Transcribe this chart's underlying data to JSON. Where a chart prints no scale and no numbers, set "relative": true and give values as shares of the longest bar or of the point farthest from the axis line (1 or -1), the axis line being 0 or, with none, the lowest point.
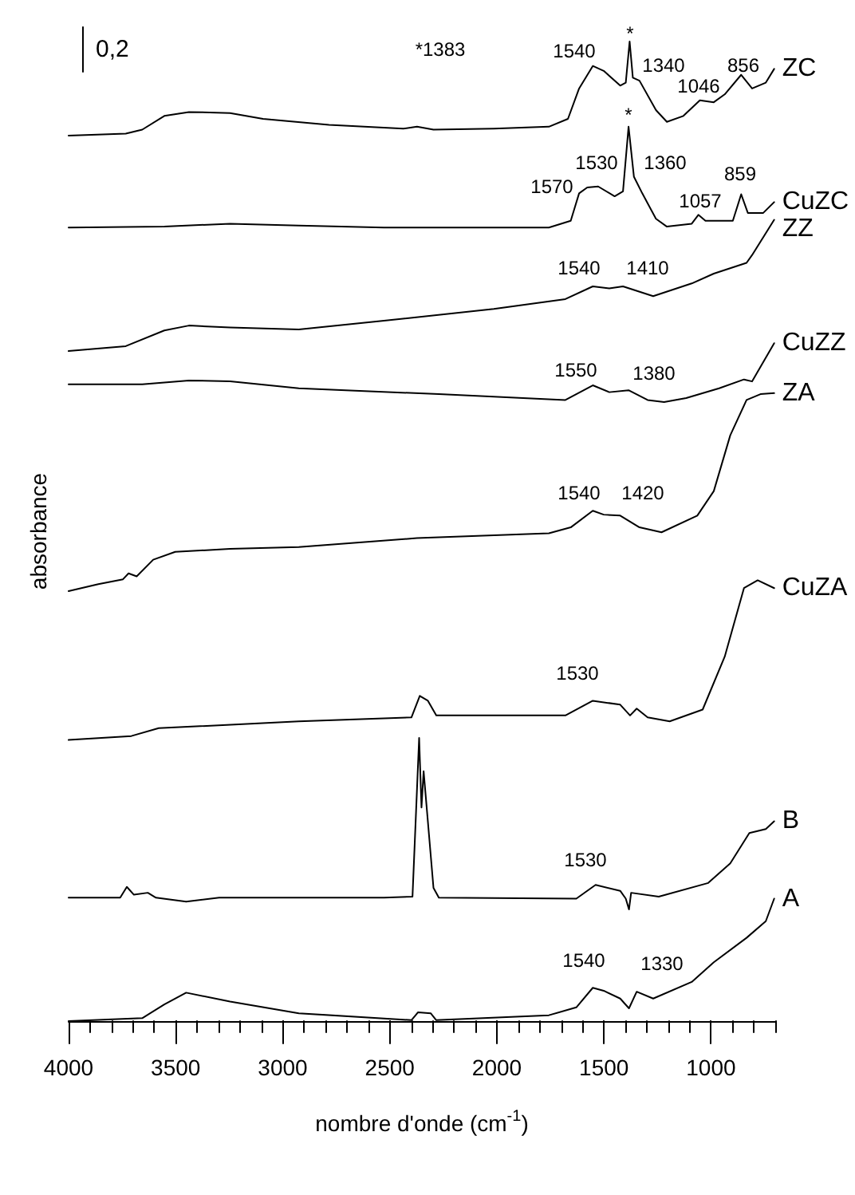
{
  "chart_data": {
    "type": "line",
    "relative": true,
    "xlabel": "nombre d'onde (cm$^{-1}$)",
    "ylabel": "absorbance",
    "xlim": [
      4000,
      700
    ],
    "xticks": [
      4000,
      {
        "value": 3900,
        "label": null
      },
      {
        "value": 3800,
        "label": null
      },
      {
        "value": 3700,
        "label": null
      },
      {
        "value": 3600,
        "label": null
      },
      3500,
      {
        "value": 3400,
        "label": null
      },
      {
        "value": 3300,
        "label": null
      },
      {
        "value": 3200,
        "label": null
      },
      {
        "value": 3100,
        "label": null
      },
      3000,
      {
        "value": 2900,
        "label": null
      },
      {
        "value": 2800,
        "label": null
      },
      {
        "value": 2700,
        "label": null
      },
      {
        "value": 2600,
        "label": null
      },
      2500,
      {
        "value": 2400,
        "label": null
      },
      {
        "value": 2300,
        "label": null
      },
      {
        "value": 2200,
        "label": null
      },
      {
        "value": 2100,
        "label": null
      },
      2000,
      {
        "value": 1900,
        "label": null
      },
      {
        "value": 1800,
        "label": null
      },
      {
        "value": 1700,
        "label": null
      },
      {
        "value": 1600,
        "label": null
      },
      1500,
      {
        "value": 1400,
        "label": null
      },
      {
        "value": 1300,
        "label": null
      },
      {
        "value": 1200,
        "label": null
      },
      {
        "value": 1100,
        "label": null
      },
      1000,
      {
        "value": 900,
        "label": null
      },
      {
        "value": 800,
        "label": null
      },
      {
        "value": 700,
        "label": null
      }
    ],
    "series": [
      {
        "name": "ZC",
        "color": "#000000",
        "x": [
          4000,
          3733,
          3656,
          3553,
          3438,
          3246,
          3092,
          2784,
          2437,
          2373,
          2296,
          2014,
          1757,
          1668,
          1616,
          1552,
          1501,
          1424,
          1398,
          1380,
          1365,
          1334,
          1257,
          1206,
          1129,
          1052,
          987,
          936,
          859,
          808,
          744,
          705
        ],
        "values": [
          0.904,
          0.906,
          0.91,
          0.924,
          0.928,
          0.927,
          0.921,
          0.915,
          0.911,
          0.913,
          0.91,
          0.911,
          0.913,
          0.921,
          0.952,
          0.975,
          0.97,
          0.955,
          0.958,
          1.0,
          0.963,
          0.96,
          0.93,
          0.918,
          0.924,
          0.94,
          0.938,
          0.946,
          0.966,
          0.952,
          0.958,
          0.972
        ]
      },
      {
        "name": "CuZC",
        "color": "#000000",
        "x": [
          4000,
          3553,
          3246,
          2925,
          2527,
          1757,
          1655,
          1616,
          1578,
          1527,
          1450,
          1411,
          1385,
          1360,
          1321,
          1257,
          1206,
          1090,
          1059,
          1026,
          898,
          859,
          828,
          756,
          705
        ],
        "values": [
          0.81,
          0.811,
          0.814,
          0.812,
          0.81,
          0.81,
          0.817,
          0.845,
          0.851,
          0.852,
          0.842,
          0.847,
          0.913,
          0.862,
          0.845,
          0.819,
          0.811,
          0.814,
          0.823,
          0.817,
          0.817,
          0.844,
          0.825,
          0.825,
          0.836
        ]
      },
      {
        "name": "ZZ",
        "color": "#000000",
        "x": [
          4000,
          3733,
          3553,
          3438,
          3246,
          2925,
          2527,
          2014,
          1680,
          1552,
          1475,
          1411,
          1270,
          1090,
          987,
          834,
          808,
          705
        ],
        "values": [
          0.684,
          0.689,
          0.705,
          0.71,
          0.708,
          0.706,
          0.715,
          0.727,
          0.737,
          0.75,
          0.748,
          0.75,
          0.74,
          0.753,
          0.763,
          0.774,
          0.782,
          0.818
        ]
      },
      {
        "name": "CuZZ",
        "color": "#000000",
        "x": [
          4000,
          3656,
          3438,
          3246,
          2925,
          2271,
          1680,
          1552,
          1475,
          1385,
          1296,
          1219,
          1116,
          962,
          846,
          808,
          705
        ],
        "values": [
          0.65,
          0.65,
          0.654,
          0.653,
          0.646,
          0.64,
          0.634,
          0.649,
          0.642,
          0.644,
          0.634,
          0.632,
          0.636,
          0.646,
          0.655,
          0.653,
          0.692
        ]
      },
      {
        "name": "ZA",
        "color": "#000000",
        "x": [
          4000,
          3861,
          3746,
          3720,
          3682,
          3605,
          3502,
          3246,
          2925,
          2373,
          1757,
          1655,
          1552,
          1501,
          1424,
          1334,
          1231,
          1064,
          987,
          910,
          834,
          769,
          705
        ],
        "values": [
          0.439,
          0.446,
          0.451,
          0.457,
          0.454,
          0.471,
          0.479,
          0.482,
          0.484,
          0.493,
          0.498,
          0.504,
          0.521,
          0.517,
          0.516,
          0.504,
          0.499,
          0.516,
          0.541,
          0.598,
          0.634,
          0.64,
          0.641
        ]
      },
      {
        "name": "CuZA",
        "color": "#000000",
        "x": [
          4000,
          3707,
          3579,
          2925,
          2399,
          2360,
          2322,
          2283,
          1680,
          1552,
          1424,
          1378,
          1347,
          1296,
          1193,
          1039,
          936,
          846,
          782,
          705
        ],
        "values": [
          0.287,
          0.291,
          0.299,
          0.306,
          0.31,
          0.332,
          0.327,
          0.312,
          0.312,
          0.327,
          0.323,
          0.312,
          0.319,
          0.31,
          0.306,
          0.318,
          0.372,
          0.442,
          0.45,
          0.442
        ]
      },
      {
        "name": "B",
        "color": "#000000",
        "x": [
          4000,
          3759,
          3728,
          3695,
          3630,
          3592,
          3451,
          3297,
          2527,
          2394,
          2363,
          2352,
          2342,
          2296,
          2271,
          1629,
          1539,
          1424,
          1398,
          1383,
          1373,
          1244,
          1013,
          910,
          821,
          744,
          705
        ],
        "values": [
          0.126,
          0.126,
          0.137,
          0.129,
          0.131,
          0.126,
          0.122,
          0.126,
          0.126,
          0.127,
          0.289,
          0.218,
          0.255,
          0.136,
          0.126,
          0.125,
          0.139,
          0.133,
          0.125,
          0.114,
          0.131,
          0.127,
          0.141,
          0.161,
          0.192,
          0.196,
          0.204
        ]
      },
      {
        "name": "A",
        "color": "#000000",
        "x": [
          4000,
          3656,
          3553,
          3451,
          3246,
          2925,
          2399,
          2368,
          2309,
          2283,
          1757,
          1629,
          1552,
          1501,
          1424,
          1383,
          1347,
          1270,
          1090,
          987,
          834,
          744,
          705
        ],
        "values": [
          0,
          0.003,
          0.017,
          0.029,
          0.02,
          0.008,
          0.001,
          0.009,
          0.008,
          0.001,
          0.006,
          0.014,
          0.034,
          0.031,
          0.023,
          0.013,
          0.03,
          0.023,
          0.04,
          0.06,
          0.085,
          0.102,
          0.125
        ]
      }
    ],
    "annotations": [
      "0,2",
      "*1383",
      "1540",
      "*",
      "1340",
      "1046",
      "856",
      "1570",
      "1530",
      "*",
      "1360",
      "1057",
      "859",
      "1540",
      "1410",
      "1550",
      "1380",
      "1540",
      "1420",
      "1530",
      "1530",
      "1540",
      "1330"
    ]
  }
}
